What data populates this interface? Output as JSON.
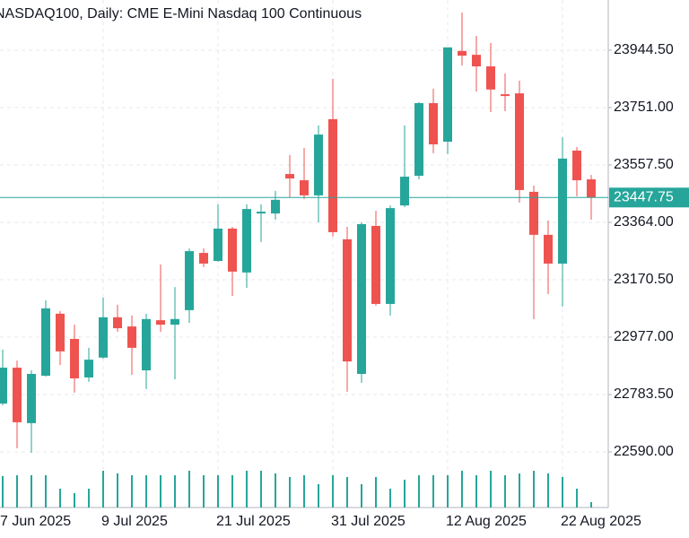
{
  "chart_data": {
    "type": "candlestick",
    "title": "NASDAQ100, Daily:  CME E-Mini Nasdaq 100 Continuous",
    "categories": [
      "7 Jun 2025",
      null,
      null,
      null,
      null,
      null,
      null,
      null,
      "9 Jul 2025",
      null,
      null,
      null,
      null,
      null,
      null,
      null,
      "21 Jul 2025",
      null,
      null,
      null,
      null,
      null,
      null,
      null,
      "31 Jul 2025",
      null,
      null,
      null,
      null,
      null,
      null,
      null,
      "12 Aug 2025",
      null,
      null,
      null,
      null,
      null,
      null,
      null,
      "22 Aug 2025",
      null,
      null
    ],
    "open": [
      null,
      22753,
      22874,
      22687,
      22847,
      23056,
      22971,
      22841,
      22908,
      23044,
      23013,
      22865,
      23034,
      23019,
      23068,
      23261,
      23234,
      23343,
      23195,
      23394,
      23394,
      23527,
      23506,
      23455,
      23712,
      23307,
      22853,
      23352,
      23089,
      23421,
      23521,
      23766,
      23636,
      23942,
      23929,
      23890,
      23796,
      23799,
      23467,
      23322,
      23225,
      23606,
      23509
    ],
    "high": [
      null,
      22935,
      22898,
      22865,
      23101,
      23065,
      23019,
      22941,
      23110,
      23086,
      23050,
      23056,
      23222,
      23146,
      23276,
      23276,
      23425,
      23349,
      23425,
      23425,
      23470,
      23591,
      23615,
      23691,
      23848,
      23349,
      23364,
      23403,
      23421,
      23691,
      23769,
      23815,
      23954,
      24072,
      23993,
      23969,
      23866,
      23842,
      23488,
      23370,
      23651,
      23618,
      23524
    ],
    "low": [
      null,
      22747,
      22602,
      22587,
      22844,
      22883,
      22790,
      22826,
      22904,
      22995,
      22850,
      22802,
      22995,
      22835,
      23025,
      23213,
      23231,
      23116,
      23143,
      23298,
      23373,
      23449,
      23443,
      23364,
      23316,
      22793,
      22823,
      23083,
      23050,
      23415,
      23509,
      23597,
      23594,
      23893,
      23805,
      23736,
      23739,
      23431,
      23038,
      23122,
      23080,
      23452,
      23373
    ],
    "close": [
      null,
      22874,
      22690,
      22853,
      23074,
      22929,
      22838,
      22901,
      23044,
      23007,
      22941,
      23038,
      23019,
      23038,
      23267,
      23225,
      23343,
      23198,
      23409,
      23400,
      23440,
      23512,
      23455,
      23660,
      23331,
      22895,
      23358,
      23089,
      23412,
      23518,
      23766,
      23627,
      23954,
      23926,
      23890,
      23812,
      23790,
      23473,
      23322,
      23225,
      23579,
      23506,
      23447.75
    ],
    "volume": [
      null,
      35,
      36,
      36,
      36,
      21,
      16,
      21,
      41,
      38,
      36,
      36,
      36,
      36,
      41,
      36,
      36,
      36,
      41,
      41,
      38,
      34,
      36,
      26,
      36,
      34,
      26,
      34,
      21,
      31,
      36,
      36,
      36,
      41,
      36,
      41,
      36,
      38,
      41,
      38,
      34,
      21,
      6
    ],
    "vlim": [
      0,
      60
    ],
    "up_color": "#26a69a",
    "down_color": "#ef5350",
    "volume_color": "#26a69a",
    "last_price": 23447.75,
    "ylim": [
      22402.5,
      24113.8
    ],
    "yticks": [
      {
        "value": 23944.5,
        "label": "23944.50"
      },
      {
        "value": 23751,
        "label": "23751.00"
      },
      {
        "value": 23557.5,
        "label": "23557.50"
      },
      {
        "value": 23364,
        "label": "23364.00"
      },
      {
        "value": 23170.5,
        "label": "23170.50"
      },
      {
        "value": 22977,
        "label": "22977.00"
      },
      {
        "value": 22783.5,
        "label": "22783.50"
      },
      {
        "value": 22590,
        "label": "22590.00"
      }
    ],
    "grid": true
  }
}
